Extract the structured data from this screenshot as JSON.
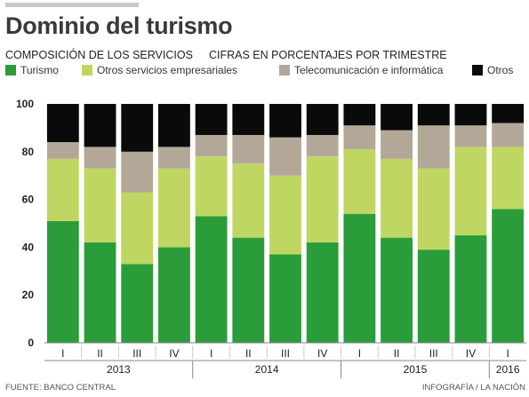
{
  "header": {
    "title": "Dominio del turismo",
    "subtitle_left": "COMPOSICIÓN DE LOS SERVICIOS",
    "subtitle_right": "CIFRAS EN PORCENTAJES POR TRIMESTRE"
  },
  "footer": {
    "source": "FUENTE: BANCO CENTRAL",
    "credit": "INFOGRAFÍA / LA NACIÓN"
  },
  "chart_data": {
    "type": "bar",
    "stacked": true,
    "categories": [
      "I",
      "II",
      "III",
      "IV",
      "I",
      "II",
      "III",
      "IV",
      "I",
      "II",
      "III",
      "IV",
      "I"
    ],
    "years": [
      {
        "label": "2013",
        "count": 4
      },
      {
        "label": "2014",
        "count": 4
      },
      {
        "label": "2015",
        "count": 4
      },
      {
        "label": "2016",
        "count": 1
      }
    ],
    "series": [
      {
        "name": "Turismo",
        "color": "#2a9d3a",
        "values": [
          51,
          42,
          33,
          40,
          53,
          44,
          37,
          42,
          54,
          44,
          39,
          45,
          56
        ]
      },
      {
        "name": "Otros servicios empresariales",
        "color": "#c0d662",
        "values": [
          26,
          31,
          30,
          33,
          25,
          31,
          33,
          36,
          27,
          33,
          34,
          37,
          26
        ]
      },
      {
        "name": "Telecomunicación e informática",
        "color": "#b3a898",
        "values": [
          7,
          9,
          17,
          9,
          9,
          12,
          16,
          9,
          10,
          12,
          18,
          9,
          10
        ]
      },
      {
        "name": "Otros",
        "color": "#0a0a0a",
        "values": [
          16,
          18,
          20,
          18,
          13,
          13,
          14,
          13,
          9,
          11,
          9,
          9,
          8
        ]
      }
    ],
    "yticks": [
      0,
      20,
      40,
      60,
      80,
      100
    ],
    "ylim": [
      0,
      100
    ],
    "legend_position": "top"
  }
}
